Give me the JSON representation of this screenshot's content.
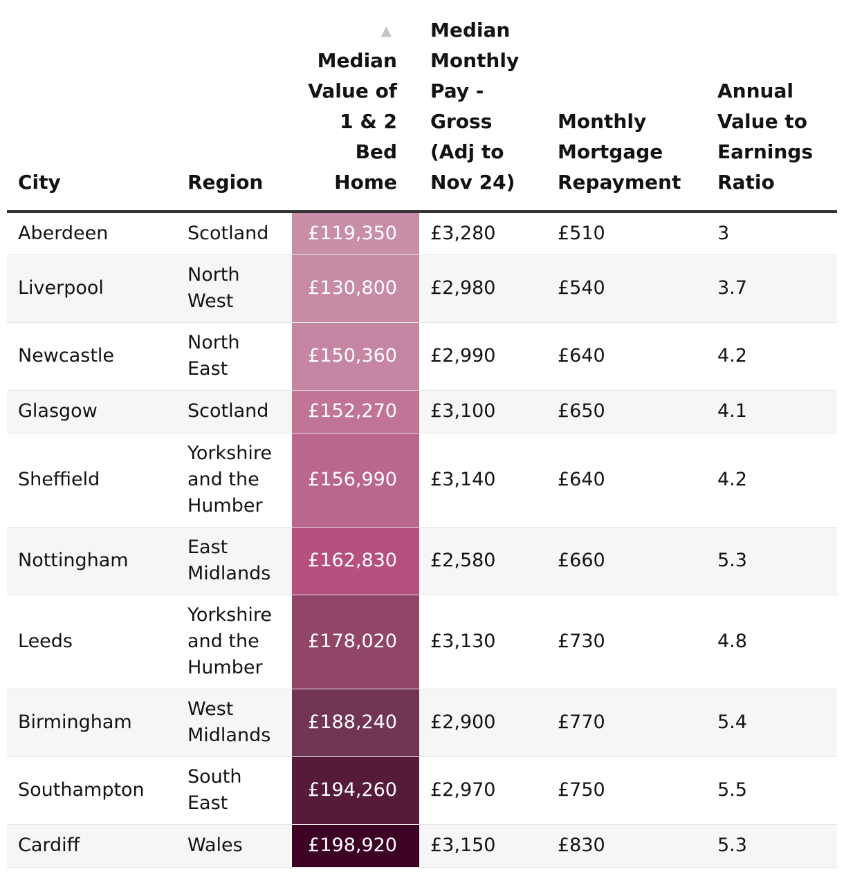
{
  "table": {
    "headers": {
      "city": "City",
      "region": "Region",
      "value": "Median Value of 1 & 2 Bed Home",
      "pay": "Median Monthly Pay - Gross (Adj to Nov 24)",
      "mortgage": "Monthly Mortgage Repayment",
      "ratio": "Annual Value to Earnings Ratio"
    },
    "sort_indicator": "▲",
    "rows": [
      {
        "city": "Aberdeen",
        "region": "Scotland",
        "value": "£119,350",
        "pay": "£3,280",
        "mortgage": "£510",
        "ratio": "3",
        "color": "#c98fa9"
      },
      {
        "city": "Liverpool",
        "region": "North West",
        "value": "£130,800",
        "pay": "£2,980",
        "mortgage": "£540",
        "ratio": "3.7",
        "color": "#c78ba6"
      },
      {
        "city": "Newcastle",
        "region": "North East",
        "value": "£150,360",
        "pay": "£2,990",
        "mortgage": "£640",
        "ratio": "4.2",
        "color": "#c586a3"
      },
      {
        "city": "Glasgow",
        "region": "Scotland",
        "value": "£152,270",
        "pay": "£3,100",
        "mortgage": "£650",
        "ratio": "4.1",
        "color": "#c07596"
      },
      {
        "city": "Sheffield",
        "region": "Yorkshire and the Humber",
        "value": "£156,990",
        "pay": "£3,140",
        "mortgage": "£640",
        "ratio": "4.2",
        "color": "#bb668c"
      },
      {
        "city": "Nottingham",
        "region": "East Midlands",
        "value": "£162,830",
        "pay": "£2,580",
        "mortgage": "£660",
        "ratio": "5.3",
        "color": "#b5507f"
      },
      {
        "city": "Leeds",
        "region": "Yorkshire and the Humber",
        "value": "£178,020",
        "pay": "£3,130",
        "mortgage": "£730",
        "ratio": "4.8",
        "color": "#914668"
      },
      {
        "city": "Birmingham",
        "region": "West Midlands",
        "value": "£188,240",
        "pay": "£2,900",
        "mortgage": "£770",
        "ratio": "5.4",
        "color": "#723453"
      },
      {
        "city": "Southampton",
        "region": "South East",
        "value": "£194,260",
        "pay": "£2,970",
        "mortgage": "£750",
        "ratio": "5.5",
        "color": "#561b39"
      },
      {
        "city": "Cardiff",
        "region": "Wales",
        "value": "£198,920",
        "pay": "£3,150",
        "mortgage": "£830",
        "ratio": "5.3",
        "color": "#3d0325"
      }
    ]
  }
}
